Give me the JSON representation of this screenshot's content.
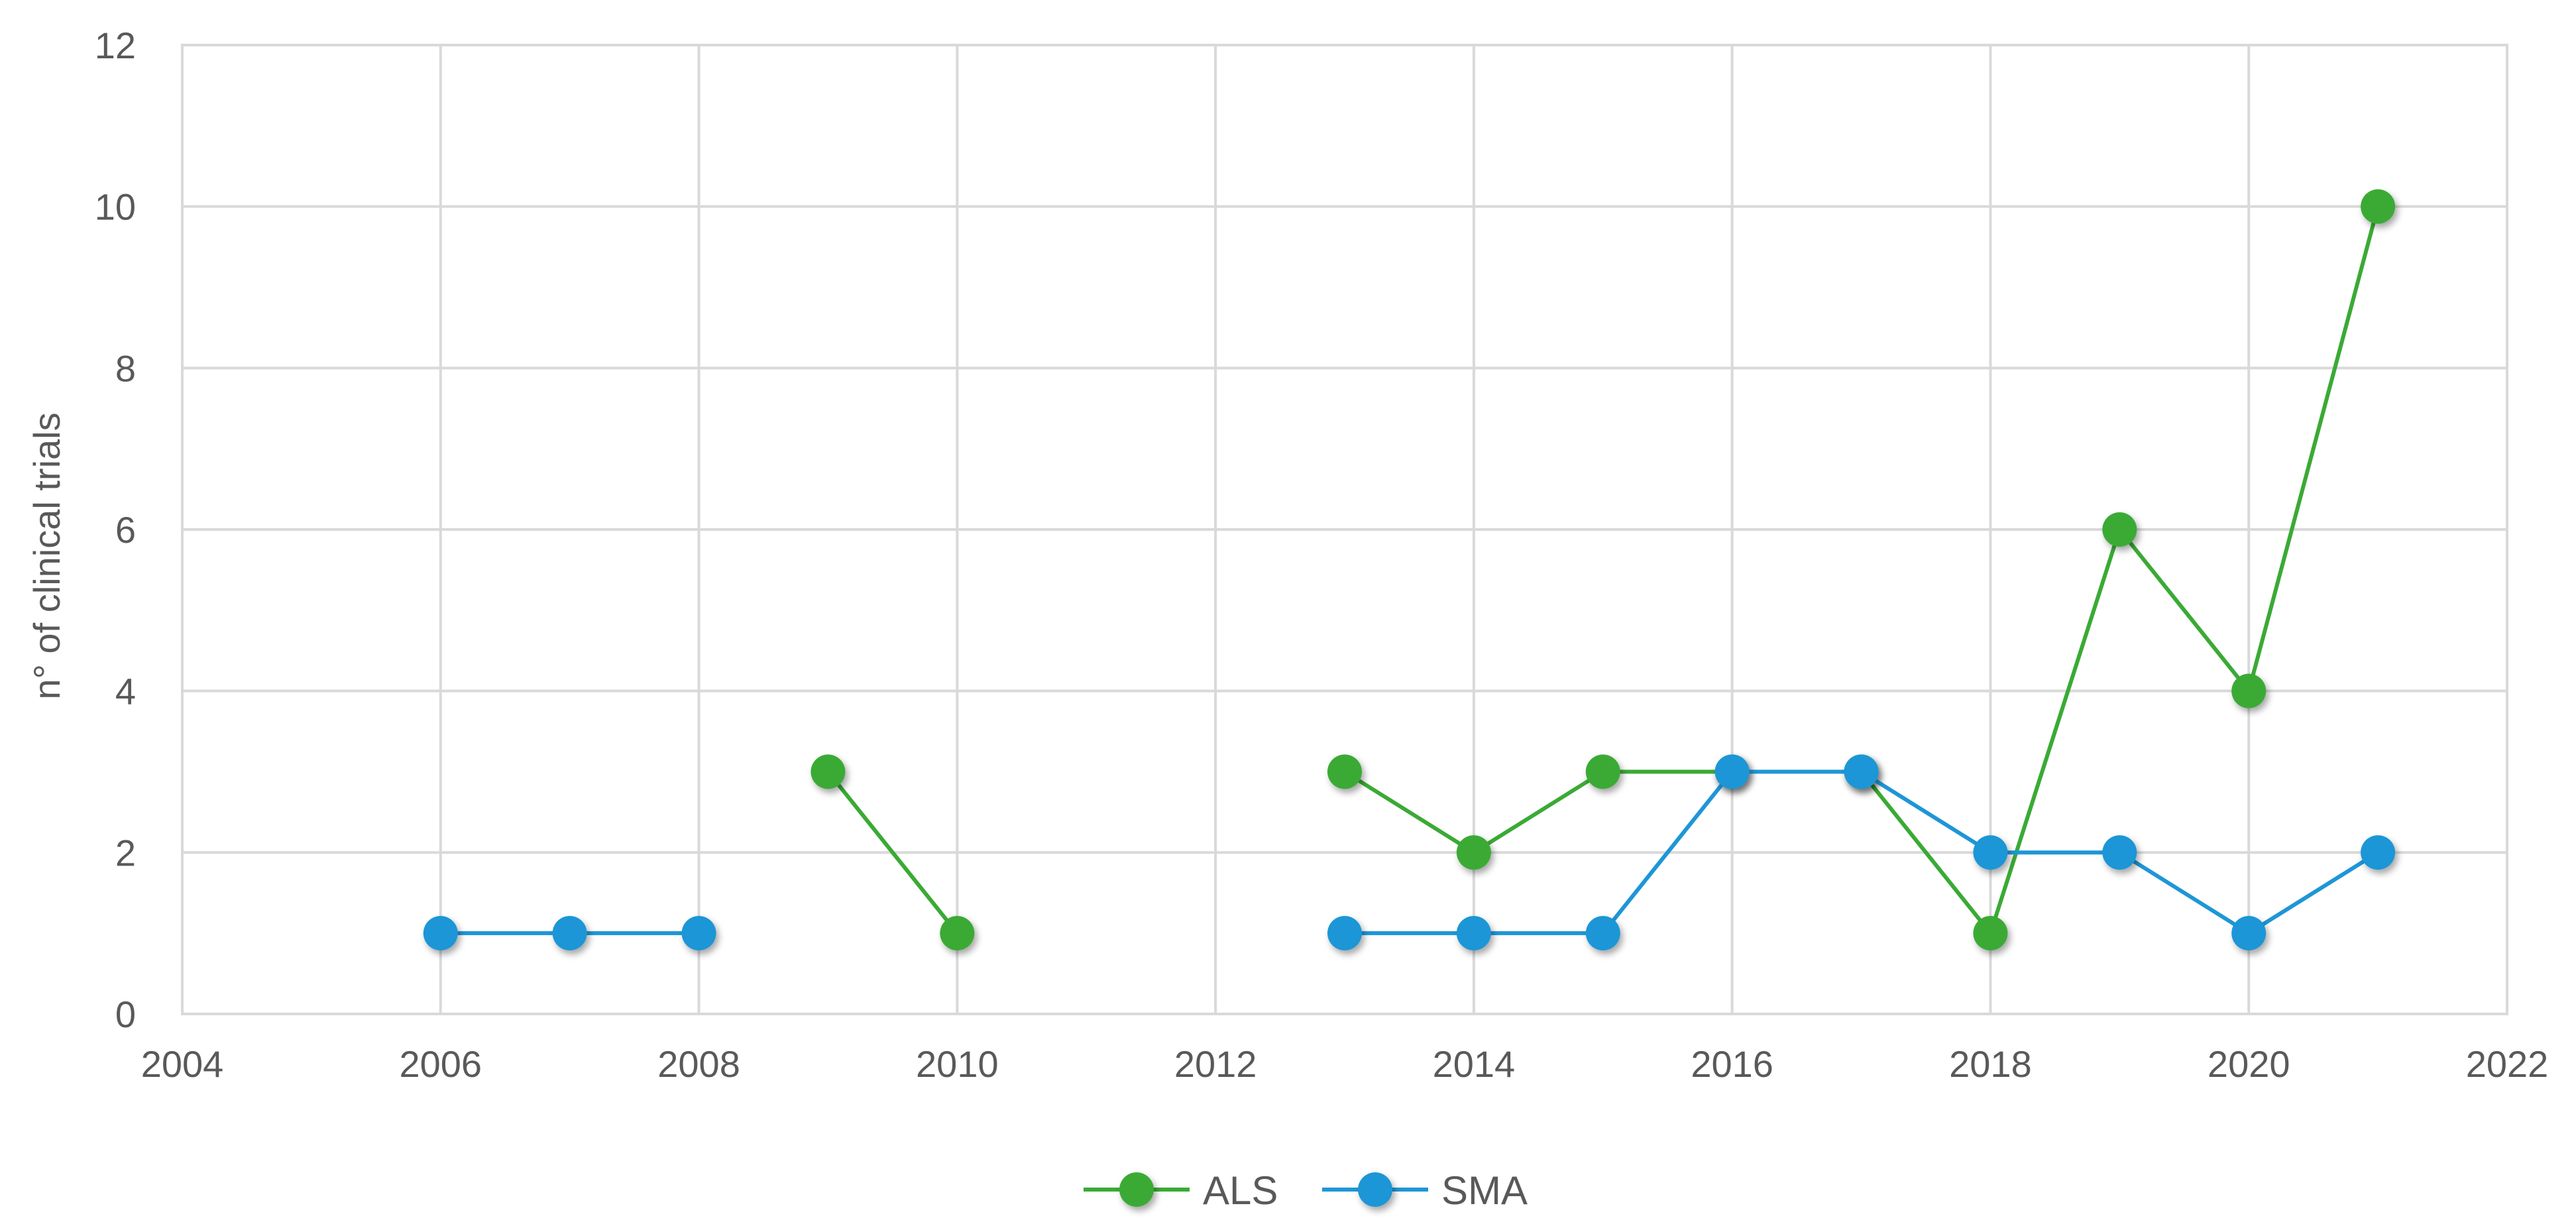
{
  "chart_data": {
    "type": "scatter",
    "mode": "lines+markers",
    "xlabel": "",
    "ylabel": "n° of clinical trials",
    "xlim": [
      2004,
      2022
    ],
    "ylim": [
      0,
      12
    ],
    "xticks": [
      "2004",
      "2006",
      "2008",
      "2010",
      "2012",
      "2014",
      "2016",
      "2018",
      "2020",
      "2022"
    ],
    "yticks": [
      "0",
      "2",
      "4",
      "6",
      "8",
      "10",
      "12"
    ],
    "grid": true,
    "legend": "bottom-center",
    "series": [
      {
        "name": "ALS",
        "color": "#3aaa35",
        "segments": [
          [
            [
              2009,
              3
            ],
            [
              2010,
              1
            ]
          ],
          [
            [
              2013,
              3
            ],
            [
              2014,
              2
            ],
            [
              2015,
              3
            ],
            [
              2016,
              3
            ],
            [
              2017,
              3
            ],
            [
              2018,
              1
            ],
            [
              2019,
              6
            ],
            [
              2020,
              4
            ],
            [
              2021,
              10
            ]
          ]
        ]
      },
      {
        "name": "SMA",
        "color": "#1e96d6",
        "segments": [
          [
            [
              2006,
              1
            ],
            [
              2007,
              1
            ],
            [
              2008,
              1
            ]
          ],
          [
            [
              2013,
              1
            ],
            [
              2014,
              1
            ],
            [
              2015,
              1
            ],
            [
              2016,
              3
            ],
            [
              2017,
              3
            ],
            [
              2018,
              2
            ],
            [
              2019,
              2
            ],
            [
              2020,
              1
            ],
            [
              2021,
              2
            ]
          ]
        ]
      }
    ]
  }
}
